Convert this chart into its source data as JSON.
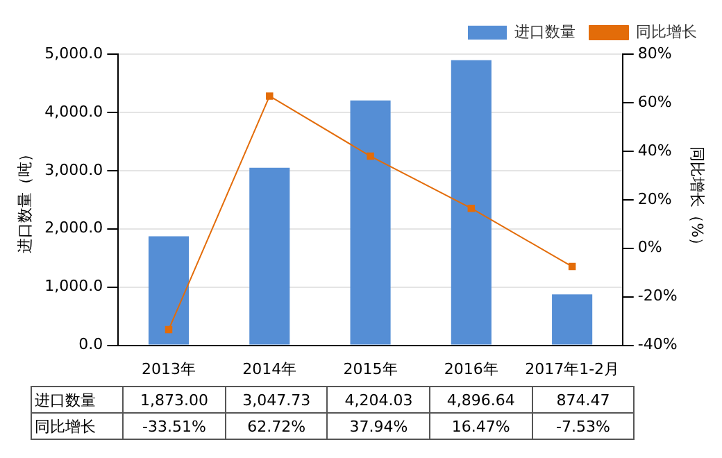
{
  "chart_data": {
    "type": "bar",
    "categories": [
      "2013年",
      "2014年",
      "2015年",
      "2016年",
      "2017年1-2月"
    ],
    "ylabel": "进口数量（吨）",
    "y2label": "同比增长（%）",
    "series": [
      {
        "name": "进口数量",
        "color": "#558ed5",
        "values": [
          1873.0,
          3047.73,
          4204.03,
          4896.64,
          874.47
        ],
        "value_labels": [
          "1,873.00",
          "3,047.73",
          "4,204.03",
          "4,896.64",
          "874.47"
        ]
      },
      {
        "name": "同比增长",
        "type": "line",
        "axis": "y2",
        "color": "#e36c09",
        "marker": "square",
        "values": [
          -33.51,
          62.72,
          37.94,
          16.47,
          -7.53
        ],
        "value_labels": [
          "-33.51%",
          "62.72%",
          "37.94%",
          "16.47%",
          "-7.53%"
        ]
      }
    ],
    "ylim": [
      0,
      5000
    ],
    "yticks": [
      {
        "value": 0,
        "label": "0.0"
      },
      {
        "value": 1000,
        "label": "1,000.0"
      },
      {
        "value": 2000,
        "label": "2,000.0"
      },
      {
        "value": 3000,
        "label": "3,000.0"
      },
      {
        "value": 4000,
        "label": "4,000.0"
      },
      {
        "value": 5000,
        "label": "5,000.0"
      }
    ],
    "y2lim": [
      -40,
      80
    ],
    "y2ticks": [
      {
        "value": -40,
        "label": "-40%"
      },
      {
        "value": -20,
        "label": "-20%"
      },
      {
        "value": 0,
        "label": "0%"
      },
      {
        "value": 20,
        "label": "20%"
      },
      {
        "value": 40,
        "label": "40%"
      },
      {
        "value": 60,
        "label": "60%"
      },
      {
        "value": 80,
        "label": "80%"
      }
    ],
    "grid": "y",
    "legend": "top right"
  }
}
